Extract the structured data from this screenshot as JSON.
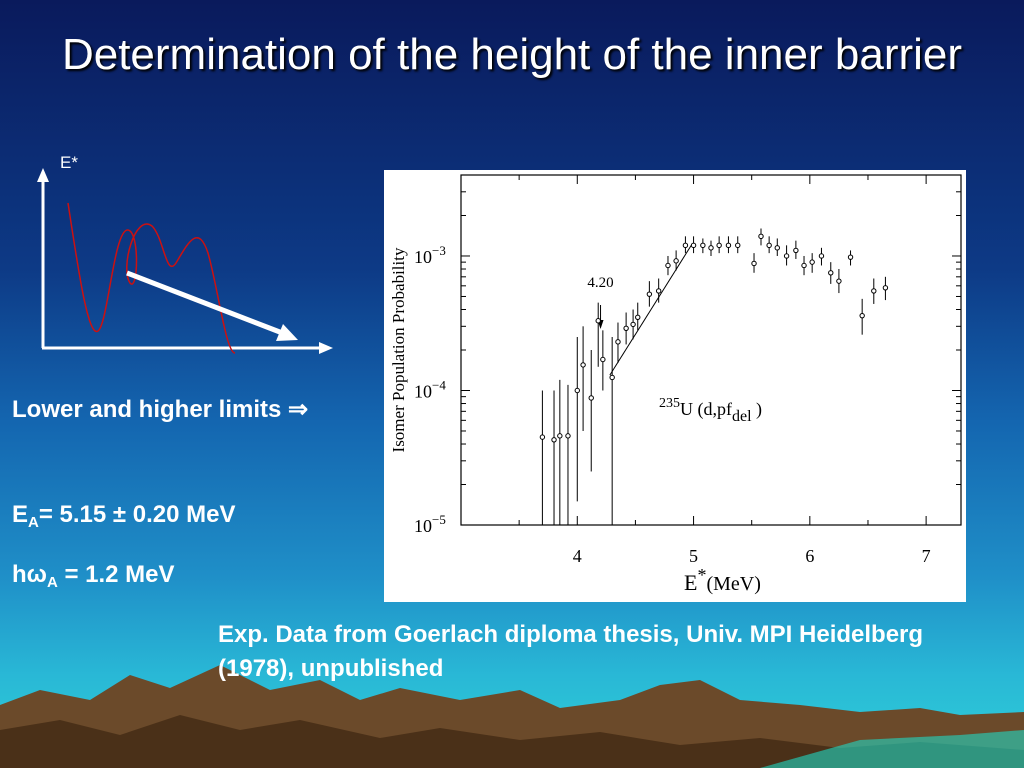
{
  "slide": {
    "title": "Determination of the height of the inner barrier",
    "sketch_axis_label": "E*",
    "limits_text": "Lower and higher limits",
    "limits_arrow": "⇒",
    "ea_prefix": "E",
    "ea_sub": "A",
    "ea_value": "= 5.15 ± 0.20 MeV",
    "hw_prefix": "hω",
    "hw_sub": "A",
    "hw_value": " = 1.2 MeV",
    "caption": "Exp. Data from Goerlach diploma thesis, Univ. MPI Heidelberg  (1978), unpublished",
    "colors": {
      "curve": "#cc1111",
      "arrow": "#ffffff",
      "axes": "#ffffff",
      "text": "#ffffff"
    }
  },
  "chart_data": {
    "type": "scatter",
    "ylabel": "Isomer Population Probability",
    "xlabel_main": "E",
    "xlabel_sup": "*",
    "xlabel_unit": "(MeV)",
    "xlim": [
      3.0,
      7.3
    ],
    "ylim": [
      1e-05,
      0.004
    ],
    "yscale": "log",
    "xticks": [
      "4",
      "5",
      "6",
      "7"
    ],
    "xtick_values": [
      4,
      5,
      6,
      7
    ],
    "yticks": [
      {
        "value": 0.001,
        "base": "10",
        "exp": "−3"
      },
      {
        "value": 0.0001,
        "base": "10",
        "exp": "−4"
      },
      {
        "value": 1e-05,
        "base": "10",
        "exp": "−5"
      }
    ],
    "annotation": {
      "text": "4.20",
      "x": 4.2
    },
    "reaction_label": {
      "sup": "235",
      "main": "U (d,pf",
      "sub": "del",
      "end": " )"
    },
    "fit_line": {
      "x": [
        4.28,
        4.98
      ],
      "y": [
        0.00013,
        0.0012
      ]
    },
    "series": [
      {
        "points": [
          {
            "x": 3.7,
            "y": 4.5e-05,
            "lo": 1e-05,
            "hi": 0.0001
          },
          {
            "x": 3.8,
            "y": 4.3e-05,
            "lo": 1e-05,
            "hi": 0.0001
          },
          {
            "x": 3.85,
            "y": 4.6e-05,
            "lo": 1e-05,
            "hi": 0.00012
          },
          {
            "x": 3.92,
            "y": 4.6e-05,
            "lo": 1e-05,
            "hi": 0.00011
          },
          {
            "x": 4.0,
            "y": 0.0001,
            "lo": 1.5e-05,
            "hi": 0.00025
          },
          {
            "x": 4.05,
            "y": 0.000155,
            "lo": 5e-05,
            "hi": 0.0003
          },
          {
            "x": 4.12,
            "y": 8.8e-05,
            "lo": 2.5e-05,
            "hi": 0.0002
          },
          {
            "x": 4.18,
            "y": 0.00033,
            "lo": 0.00015,
            "hi": 0.00045
          },
          {
            "x": 4.22,
            "y": 0.00017,
            "lo": 0.0001,
            "hi": 0.00028
          },
          {
            "x": 4.3,
            "y": 0.000125,
            "lo": 1e-05,
            "hi": 0.00025
          },
          {
            "x": 4.35,
            "y": 0.00023,
            "lo": 0.00016,
            "hi": 0.00032
          },
          {
            "x": 4.42,
            "y": 0.00029,
            "lo": 0.00022,
            "hi": 0.00038
          },
          {
            "x": 4.48,
            "y": 0.00031,
            "lo": 0.00024,
            "hi": 0.0004
          },
          {
            "x": 4.52,
            "y": 0.00035,
            "lo": 0.00028,
            "hi": 0.00045
          },
          {
            "x": 4.62,
            "y": 0.00052,
            "lo": 0.00042,
            "hi": 0.00065
          },
          {
            "x": 4.7,
            "y": 0.00055,
            "lo": 0.00045,
            "hi": 0.00068
          },
          {
            "x": 4.78,
            "y": 0.00085,
            "lo": 0.00072,
            "hi": 0.001
          },
          {
            "x": 4.85,
            "y": 0.00092,
            "lo": 0.00078,
            "hi": 0.0011
          },
          {
            "x": 4.93,
            "y": 0.0012,
            "lo": 0.00105,
            "hi": 0.0014
          },
          {
            "x": 5.0,
            "y": 0.0012,
            "lo": 0.00105,
            "hi": 0.0014
          },
          {
            "x": 5.08,
            "y": 0.0012,
            "lo": 0.00105,
            "hi": 0.00135
          },
          {
            "x": 5.15,
            "y": 0.00115,
            "lo": 0.001,
            "hi": 0.0013
          },
          {
            "x": 5.22,
            "y": 0.0012,
            "lo": 0.00105,
            "hi": 0.0014
          },
          {
            "x": 5.3,
            "y": 0.0012,
            "lo": 0.00105,
            "hi": 0.0014
          },
          {
            "x": 5.38,
            "y": 0.0012,
            "lo": 0.00105,
            "hi": 0.0014
          },
          {
            "x": 5.52,
            "y": 0.00088,
            "lo": 0.00075,
            "hi": 0.00105
          },
          {
            "x": 5.58,
            "y": 0.0014,
            "lo": 0.0012,
            "hi": 0.0016
          },
          {
            "x": 5.65,
            "y": 0.0012,
            "lo": 0.00105,
            "hi": 0.0014
          },
          {
            "x": 5.72,
            "y": 0.00115,
            "lo": 0.001,
            "hi": 0.00135
          },
          {
            "x": 5.8,
            "y": 0.001,
            "lo": 0.00085,
            "hi": 0.0012
          },
          {
            "x": 5.88,
            "y": 0.0011,
            "lo": 0.00095,
            "hi": 0.0013
          },
          {
            "x": 5.95,
            "y": 0.00085,
            "lo": 0.00072,
            "hi": 0.001
          },
          {
            "x": 6.02,
            "y": 0.0009,
            "lo": 0.00075,
            "hi": 0.00105
          },
          {
            "x": 6.1,
            "y": 0.001,
            "lo": 0.00085,
            "hi": 0.00115
          },
          {
            "x": 6.18,
            "y": 0.00075,
            "lo": 0.00062,
            "hi": 0.0009
          },
          {
            "x": 6.25,
            "y": 0.00065,
            "lo": 0.00053,
            "hi": 0.0008
          },
          {
            "x": 6.35,
            "y": 0.00098,
            "lo": 0.00085,
            "hi": 0.0011
          },
          {
            "x": 6.45,
            "y": 0.00036,
            "lo": 0.00026,
            "hi": 0.00048
          },
          {
            "x": 6.55,
            "y": 0.00055,
            "lo": 0.00044,
            "hi": 0.00068
          },
          {
            "x": 6.65,
            "y": 0.00058,
            "lo": 0.00047,
            "hi": 0.0007
          }
        ]
      }
    ]
  }
}
